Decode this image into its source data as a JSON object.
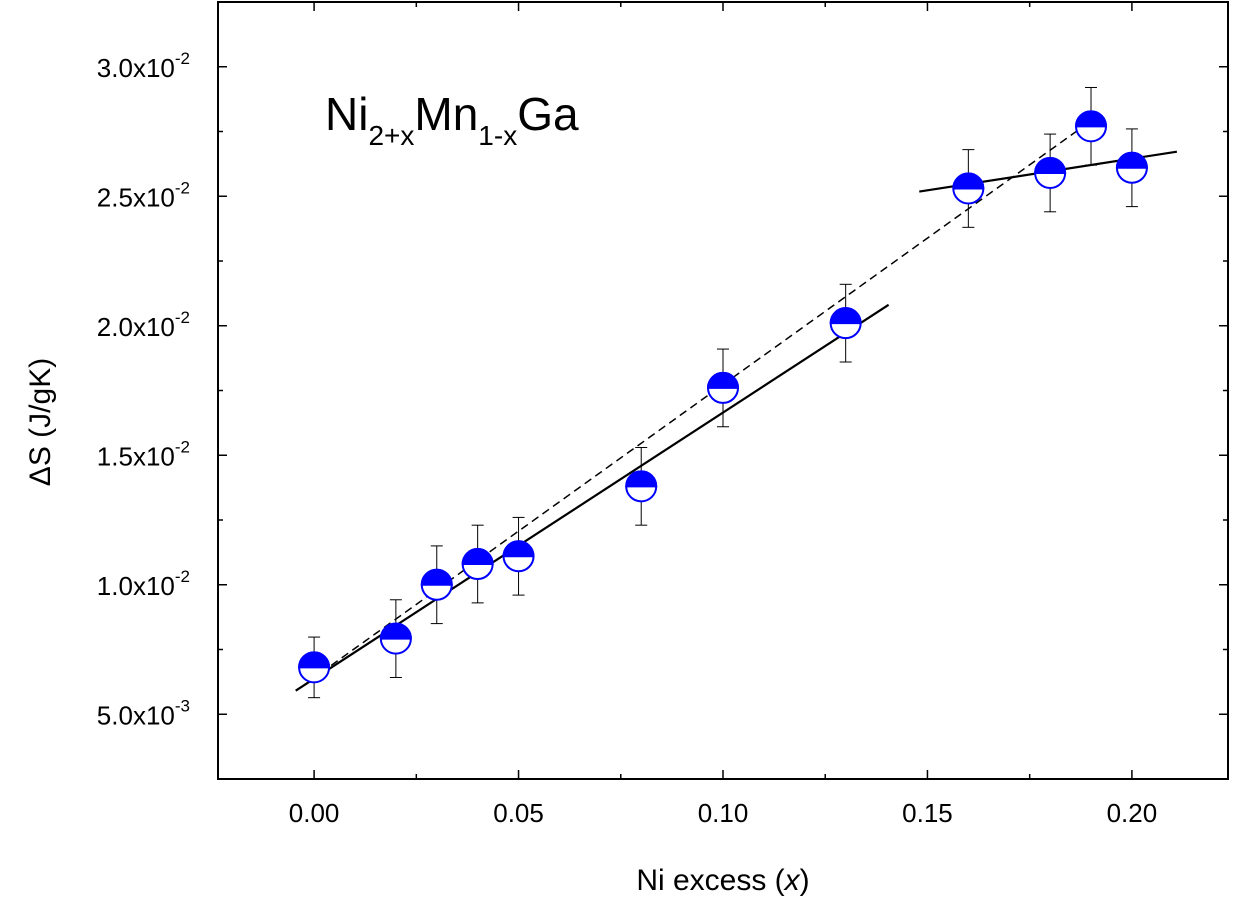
{
  "chart_data": {
    "type": "scatter",
    "title": "",
    "annotation": {
      "parts": [
        {
          "text": "Ni",
          "sub": false
        },
        {
          "text": "2+x",
          "sub": true
        },
        {
          "text": "Mn",
          "sub": false
        },
        {
          "text": "1-x",
          "sub": true
        },
        {
          "text": "Ga",
          "sub": false
        }
      ]
    },
    "xlabel": {
      "prefix": "Ni excess (",
      "var": "x",
      "suffix": ")"
    },
    "ylabel": "ΔS (J/gK)",
    "xlim": [
      -0.0235,
      0.2235
    ],
    "ylim": [
      0.0025,
      0.0325
    ],
    "x_ticks": [
      0.0,
      0.05,
      0.1,
      0.15,
      0.2
    ],
    "x_tick_labels": [
      "0.00",
      "0.05",
      "0.10",
      "0.15",
      "0.20"
    ],
    "y_ticks": [
      0.005,
      0.01,
      0.015,
      0.02,
      0.025,
      0.03
    ],
    "y_tick_labels": [
      {
        "mantissa": "5.0x10",
        "exp": "-3"
      },
      {
        "mantissa": "1.0x10",
        "exp": "-2"
      },
      {
        "mantissa": "1.5x10",
        "exp": "-2"
      },
      {
        "mantissa": "2.0x10",
        "exp": "-2"
      },
      {
        "mantissa": "2.5x10",
        "exp": "-2"
      },
      {
        "mantissa": "3.0x10",
        "exp": "-2"
      }
    ],
    "grid": false,
    "series": [
      {
        "marker": "half-filled-circle",
        "color": "#0000ff",
        "points": [
          {
            "x": 0.0,
            "y": 0.00681,
            "err": 0.00117
          },
          {
            "x": 0.02,
            "y": 0.00792,
            "err": 0.0015
          },
          {
            "x": 0.03,
            "y": 0.01,
            "err": 0.0015
          },
          {
            "x": 0.04,
            "y": 0.0108,
            "err": 0.0015
          },
          {
            "x": 0.05,
            "y": 0.0111,
            "err": 0.0015
          },
          {
            "x": 0.08,
            "y": 0.0138,
            "err": 0.0015
          },
          {
            "x": 0.1,
            "y": 0.0176,
            "err": 0.0015
          },
          {
            "x": 0.13,
            "y": 0.0201,
            "err": 0.0015
          },
          {
            "x": 0.16,
            "y": 0.0253,
            "err": 0.0015
          },
          {
            "x": 0.18,
            "y": 0.0259,
            "err": 0.0015
          },
          {
            "x": 0.19,
            "y": 0.0277,
            "err": 0.0015
          },
          {
            "x": 0.2,
            "y": 0.0261,
            "err": 0.0015
          }
        ]
      }
    ],
    "fit_lines": [
      {
        "style": "solid",
        "x": [
          -0.0045,
          0.1405
        ],
        "y": [
          0.00591,
          0.02081
        ]
      },
      {
        "style": "solid",
        "x": [
          0.148,
          0.211
        ],
        "y": [
          0.02518,
          0.02672
        ]
      },
      {
        "style": "dashed",
        "x": [
          -0.001,
          0.19
        ],
        "y": [
          0.0063,
          0.02791
        ]
      }
    ]
  }
}
